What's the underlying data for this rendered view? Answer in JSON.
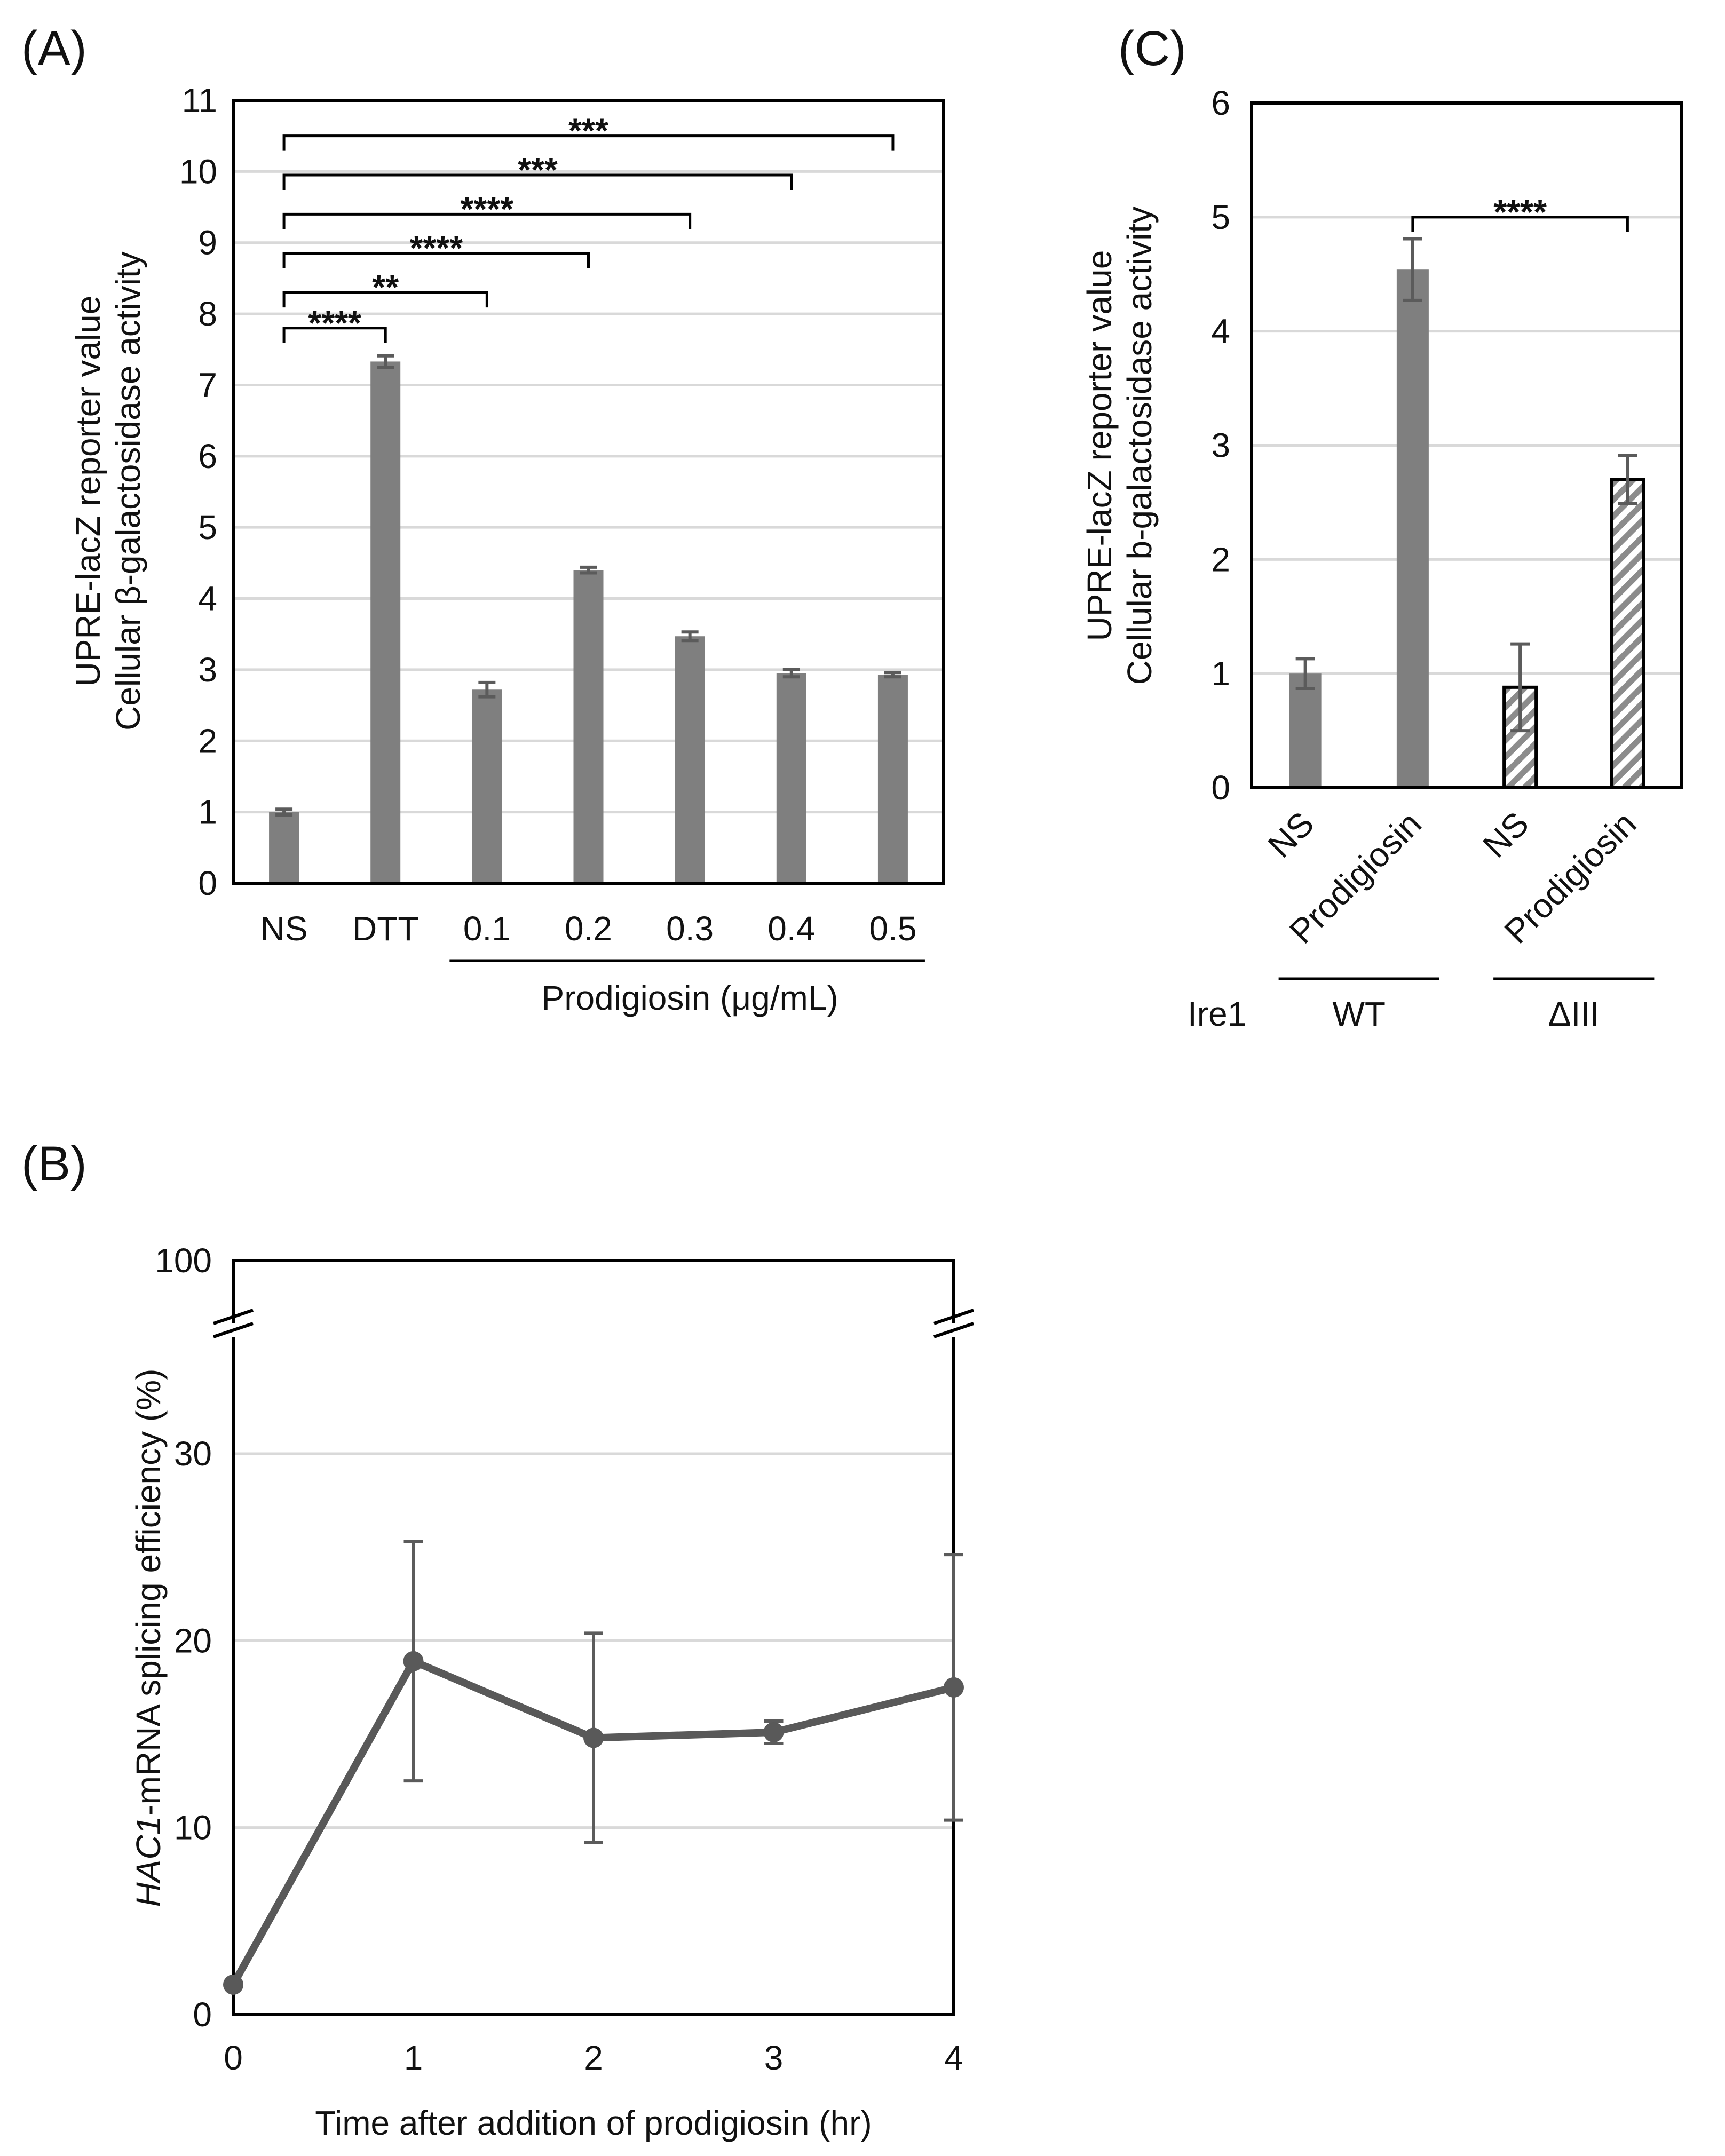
{
  "colors": {
    "bar": "#7f7f7f",
    "line": "#595959",
    "grid": "#d9d9d9",
    "axis": "#000000",
    "hatch": "#8c8c8c"
  },
  "chart_data": [
    {
      "id": "A",
      "panel_label": "(A)",
      "type": "bar",
      "categories": [
        "NS",
        "DTT",
        "0.1",
        "0.2",
        "0.3",
        "0.4",
        "0.5"
      ],
      "values": [
        1.0,
        7.33,
        2.72,
        4.4,
        3.47,
        2.95,
        2.93
      ],
      "errors": [
        0.04,
        0.08,
        0.1,
        0.04,
        0.06,
        0.05,
        0.03
      ],
      "ylabel_lines": [
        "UPRE-lacZ reporter value",
        "Cellular β-galactosidase activity"
      ],
      "ylim": [
        0,
        11
      ],
      "yticks": [
        0,
        1,
        2,
        3,
        4,
        5,
        6,
        7,
        8,
        9,
        10,
        11
      ],
      "group_label": "Prodigiosin (μg/mL)",
      "group_start": 2,
      "group_end": 6,
      "grid": true,
      "significance": [
        {
          "from": 0,
          "to": 1,
          "label": "****",
          "level": 7.8
        },
        {
          "from": 0,
          "to": 2,
          "label": "**",
          "level": 8.3
        },
        {
          "from": 0,
          "to": 3,
          "label": "****",
          "level": 8.85
        },
        {
          "from": 0,
          "to": 4,
          "label": "****",
          "level": 9.4
        },
        {
          "from": 0,
          "to": 5,
          "label": "***",
          "level": 9.95
        },
        {
          "from": 0,
          "to": 6,
          "label": "***",
          "level": 10.5
        }
      ]
    },
    {
      "id": "C",
      "panel_label": "(C)",
      "type": "bar",
      "categories": [
        "NS",
        "Prodigiosin",
        "NS",
        "Prodigiosin"
      ],
      "values": [
        1.0,
        4.54,
        0.88,
        2.7
      ],
      "errors": [
        0.13,
        0.27,
        0.38,
        0.21
      ],
      "patterns": [
        "solid",
        "solid",
        "hatched",
        "hatched"
      ],
      "ylabel_lines": [
        "UPRE-lacZ reporter value",
        "Cellular b-galactosidase activity"
      ],
      "ylim": [
        0,
        6
      ],
      "yticks": [
        0,
        1,
        2,
        3,
        4,
        5,
        6
      ],
      "grid": true,
      "row_label": "Ire1",
      "groups": [
        {
          "label": "WT",
          "from": 0,
          "to": 1
        },
        {
          "label": "ΔIII",
          "from": 2,
          "to": 3
        }
      ],
      "significance": [
        {
          "from": 1,
          "to": 3,
          "label": "****",
          "level": 5.0
        }
      ]
    },
    {
      "id": "B",
      "panel_label": "(B)",
      "type": "line",
      "x": [
        0,
        1,
        2,
        3,
        4
      ],
      "y": [
        1.6,
        18.9,
        14.8,
        15.1,
        17.5
      ],
      "errors": [
        0.0,
        6.4,
        5.6,
        0.6,
        7.1
      ],
      "xlabel": "Time after addition of prodigiosin (hr)",
      "ylabel_italic": "HAC1",
      "ylabel_rest": "-mRNA splicing efficiency (%)",
      "ylim": [
        0,
        100
      ],
      "axis_break": [
        35,
        95
      ],
      "yticks": [
        0,
        10,
        20,
        30,
        100
      ],
      "xticks": [
        0,
        1,
        2,
        3,
        4
      ],
      "grid": true
    }
  ]
}
